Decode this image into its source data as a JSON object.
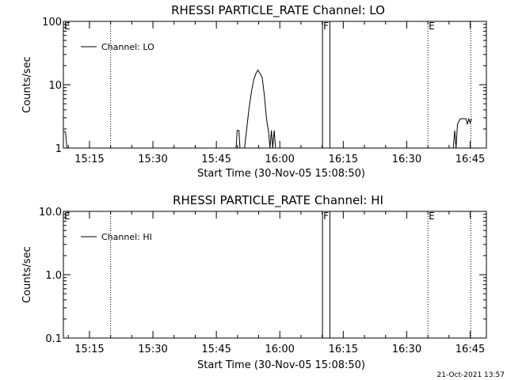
{
  "footer_timestamp": "21-Oct-2021 13:57",
  "chart_data": [
    {
      "type": "line",
      "title": "RHESSI PARTICLE_RATE Channel: LO",
      "xlabel": "Start Time (30-Nov-05 15:08:50)",
      "ylabel": "Counts/sec",
      "y_scale": "log",
      "ylim": [
        1,
        100
      ],
      "yticks": [
        1,
        10,
        100
      ],
      "ytick_labels": [
        "1",
        "10",
        "100"
      ],
      "xlim": [
        "15:08:50",
        "16:48:50"
      ],
      "xtick_labels": [
        "15:15",
        "15:30",
        "15:45",
        "16:00",
        "16:15",
        "16:30",
        "16:45"
      ],
      "legend": {
        "position": "top-left",
        "entries": [
          "Channel: LO"
        ]
      },
      "grid": false,
      "markers": [
        {
          "label": "E",
          "time": "15:08:50",
          "style": "dotted"
        },
        {
          "label": "",
          "time": "15:20:00",
          "style": "dotted"
        },
        {
          "label": "F",
          "time": "16:10:05",
          "style": "solid"
        },
        {
          "label": "",
          "time": "16:11:50",
          "style": "solid"
        },
        {
          "label": "E",
          "time": "16:35:00",
          "style": "dotted"
        },
        {
          "label": "",
          "time": "16:45:10",
          "style": "dotted"
        }
      ],
      "series": [
        {
          "name": "Channel: LO",
          "points": [
            [
              "15:09:00",
              1.8
            ],
            [
              "15:09:20",
              1.8
            ],
            [
              "15:09:40",
              1.0
            ],
            [
              "15:49:40",
              1.0
            ],
            [
              "15:49:55",
              1.9
            ],
            [
              "15:50:20",
              1.9
            ],
            [
              "15:50:35",
              1.0
            ],
            [
              "15:51:40",
              1.0
            ],
            [
              "15:52:40",
              4.0
            ],
            [
              "15:53:20",
              8.0
            ],
            [
              "15:53:50",
              12.0
            ],
            [
              "15:54:20",
              15.0
            ],
            [
              "15:54:50",
              17.0
            ],
            [
              "15:55:20",
              15.0
            ],
            [
              "15:55:50",
              13.0
            ],
            [
              "15:56:20",
              7.0
            ],
            [
              "15:56:50",
              3.0
            ],
            [
              "15:57:20",
              1.8
            ],
            [
              "15:57:40",
              1.0
            ],
            [
              "15:58:00",
              1.9
            ],
            [
              "15:58:20",
              1.0
            ],
            [
              "15:58:40",
              1.9
            ],
            [
              "15:59:00",
              1.0
            ],
            [
              "16:41:00",
              1.0
            ],
            [
              "16:41:20",
              1.9
            ],
            [
              "16:41:40",
              1.0
            ],
            [
              "16:42:00",
              2.4
            ],
            [
              "16:42:40",
              2.9
            ],
            [
              "16:44:00",
              2.9
            ],
            [
              "16:44:20",
              2.4
            ],
            [
              "16:44:40",
              2.9
            ],
            [
              "16:45:00",
              2.5
            ],
            [
              "16:45:20",
              2.9
            ]
          ]
        }
      ]
    },
    {
      "type": "line",
      "title": "RHESSI PARTICLE_RATE Channel: HI",
      "xlabel": "Start Time (30-Nov-05 15:08:50)",
      "ylabel": "Counts/sec",
      "y_scale": "log",
      "ylim": [
        0.1,
        10.0
      ],
      "yticks": [
        0.1,
        1.0,
        10.0
      ],
      "ytick_labels": [
        "0.1",
        "1.0",
        "10.0"
      ],
      "xlim": [
        "15:08:50",
        "16:48:50"
      ],
      "xtick_labels": [
        "15:15",
        "15:30",
        "15:45",
        "16:00",
        "16:15",
        "16:30",
        "16:45"
      ],
      "legend": {
        "position": "top-left",
        "entries": [
          "Channel: HI"
        ]
      },
      "grid": false,
      "markers": [
        {
          "label": "E",
          "time": "15:08:50",
          "style": "dotted"
        },
        {
          "label": "",
          "time": "15:20:00",
          "style": "dotted"
        },
        {
          "label": "F",
          "time": "16:10:05",
          "style": "solid"
        },
        {
          "label": "",
          "time": "16:11:50",
          "style": "solid"
        },
        {
          "label": "E",
          "time": "16:35:00",
          "style": "dotted"
        },
        {
          "label": "",
          "time": "16:45:10",
          "style": "dotted"
        }
      ],
      "series": [
        {
          "name": "Channel: HI",
          "points": []
        }
      ]
    }
  ]
}
